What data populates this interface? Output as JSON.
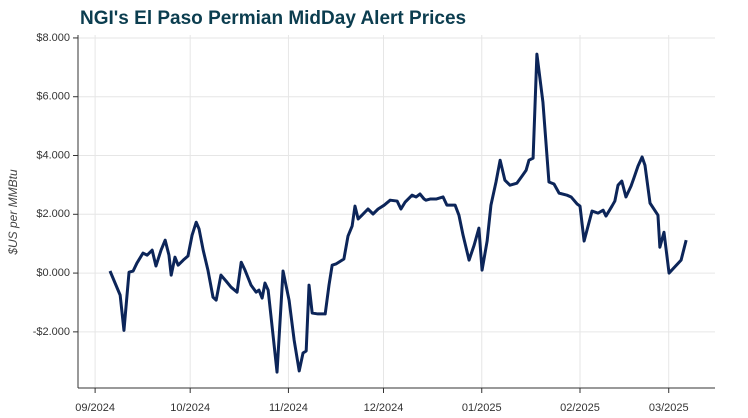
{
  "chart_data": {
    "type": "line",
    "title": "NGI's El Paso Permian MidDay Alert Prices",
    "y_label": "$US per MMBtu",
    "x": [
      4.7,
      7.9,
      9.1,
      10.7,
      12.0,
      13.2,
      15.1,
      16.4,
      18.0,
      19.2,
      20.8,
      22.1,
      23.3,
      24.0,
      25.2,
      26.2,
      27.8,
      29.3,
      30.6,
      31.9,
      32.8,
      34.1,
      35.6,
      37.2,
      38.2,
      39.7,
      41.3,
      42.9,
      44.8,
      46.1,
      47.3,
      49.2,
      50.8,
      51.7,
      52.7,
      53.6,
      54.6,
      55.8,
      57.4,
      59.3,
      61.2,
      62.8,
      64.4,
      65.6,
      66.6,
      67.5,
      68.5,
      70.3,
      72.6,
      73.8,
      74.8,
      76.0,
      78.5,
      79.8,
      81.1,
      82.0,
      83.0,
      84.2,
      86.1,
      87.7,
      89.3,
      91.2,
      93.1,
      95.3,
      96.5,
      97.8,
      100.0,
      101.3,
      102.5,
      103.8,
      104.4,
      105.7,
      107.6,
      109.8,
      111.0,
      113.6,
      114.8,
      116.1,
      118.0,
      119.6,
      121.1,
      122.1,
      123.7,
      124.9,
      126.5,
      127.8,
      129.3,
      130.9,
      133.1,
      134.7,
      136.0,
      136.9,
      138.2,
      139.4,
      141.3,
      143.2,
      144.8,
      146.4,
      148.9,
      150.2,
      152.1,
      153.0,
      154.3,
      156.8,
      158.7,
      160.3,
      161.2,
      163.1,
      164.0,
      165.0,
      166.2,
      167.5,
      169.1,
      170.0,
      171.3,
      172.6,
      173.5,
      175.1,
      177.6,
      178.2,
      179.5,
      181.1,
      184.9,
      186.5
    ],
    "series": [
      {
        "name": "El Paso Permian",
        "color": "#0c2559",
        "values": [
          0.07,
          -0.75,
          -1.95,
          0.03,
          0.07,
          0.34,
          0.68,
          0.61,
          0.78,
          0.24,
          0.78,
          1.12,
          0.61,
          -0.07,
          0.54,
          0.27,
          0.44,
          0.58,
          1.29,
          1.73,
          1.5,
          0.78,
          0.1,
          -0.82,
          -0.92,
          -0.07,
          -0.27,
          -0.48,
          -0.65,
          0.37,
          0.1,
          -0.41,
          -0.65,
          -0.58,
          -0.85,
          -0.34,
          -0.58,
          -1.77,
          -3.37,
          0.07,
          -0.92,
          -2.28,
          -3.33,
          -2.72,
          -2.65,
          -0.41,
          -1.36,
          -1.39,
          -1.39,
          -0.41,
          0.27,
          0.31,
          0.48,
          1.26,
          1.6,
          2.28,
          1.84,
          1.97,
          2.18,
          2.01,
          2.18,
          2.31,
          2.48,
          2.45,
          2.18,
          2.41,
          2.65,
          2.59,
          2.69,
          2.52,
          2.48,
          2.52,
          2.52,
          2.59,
          2.31,
          2.31,
          1.97,
          1.29,
          0.44,
          0.95,
          1.53,
          0.1,
          1.09,
          2.31,
          3.1,
          3.84,
          3.16,
          2.99,
          3.06,
          3.3,
          3.5,
          3.84,
          3.91,
          7.45,
          5.82,
          3.1,
          3.03,
          2.72,
          2.65,
          2.59,
          2.35,
          2.28,
          1.09,
          2.11,
          2.04,
          2.14,
          1.94,
          2.28,
          2.45,
          2.99,
          3.13,
          2.59,
          2.96,
          3.23,
          3.64,
          3.95,
          3.67,
          2.38,
          1.97,
          0.88,
          1.39,
          0.0,
          0.44,
          1.12
        ]
      }
    ],
    "xlim": [
      -5.4,
      195.6
    ],
    "xticks": [
      {
        "value": 0,
        "label": "09/2024"
      },
      {
        "value": 30,
        "label": "10/2024"
      },
      {
        "value": 61,
        "label": "11/2024"
      },
      {
        "value": 91,
        "label": "12/2024"
      },
      {
        "value": 122,
        "label": "01/2025"
      },
      {
        "value": 153,
        "label": "02/2025"
      },
      {
        "value": 181,
        "label": "03/2025"
      }
    ],
    "ylim": [
      -3.91,
      8.1
    ],
    "yticks": [
      {
        "value": -2,
        "label": "-$2.000"
      },
      {
        "value": 0,
        "label": "$0.000"
      },
      {
        "value": 2,
        "label": "$2.000"
      },
      {
        "value": 4,
        "label": "$4.000"
      },
      {
        "value": 6,
        "label": "$6.000"
      },
      {
        "value": 8,
        "label": "$8.000"
      }
    ],
    "grid": true
  }
}
